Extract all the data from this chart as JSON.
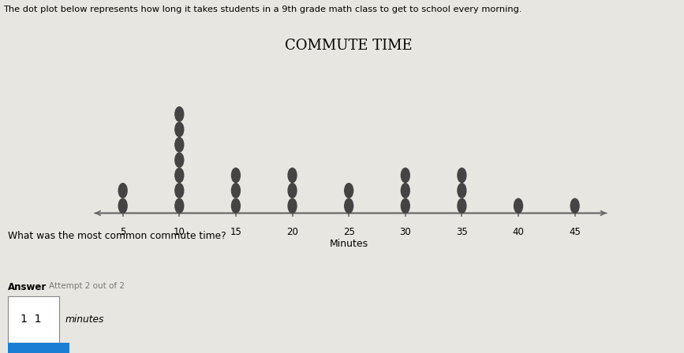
{
  "title": "COMMUTE TIME",
  "xlabel": "Minutes",
  "dot_data": {
    "5": 2,
    "10": 7,
    "15": 3,
    "20": 3,
    "25": 2,
    "30": 3,
    "35": 3,
    "40": 1,
    "45": 1
  },
  "x_ticks": [
    5,
    10,
    15,
    20,
    25,
    30,
    35,
    40,
    45
  ],
  "xlim": [
    2,
    48
  ],
  "dot_color": "#444444",
  "dot_size": 28,
  "line_color": "#666666",
  "background_color": "#e8e6e1",
  "title_fontsize": 13,
  "xlabel_fontsize": 9,
  "tick_fontsize": 8.5,
  "header_text": "The dot plot below represents how long it takes students in a 9th grade math class to get to school every morning.",
  "question_text": "What was the most common commute time?",
  "answer_label": "Answer",
  "attempt_text": "Attempt 2 out of 2",
  "answer_value": "1  1"
}
